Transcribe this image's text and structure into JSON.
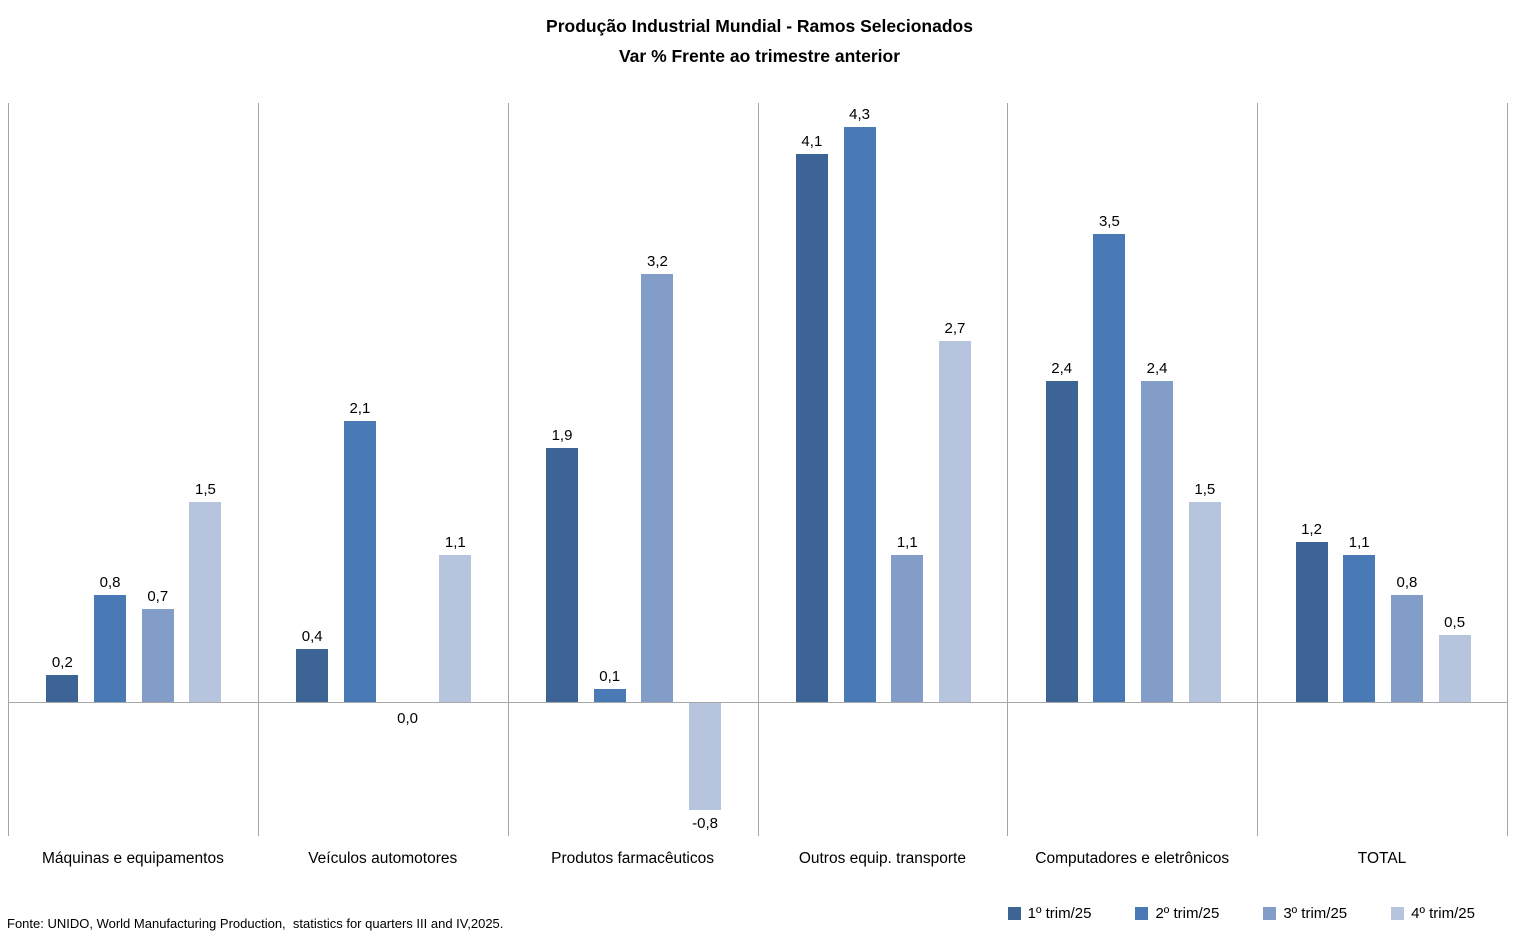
{
  "title": {
    "line1": "Produção Industrial Mundial - Ramos Selecionados",
    "line2": "Var % Frente ao trimestre anterior"
  },
  "source": "Fonte: UNIDO, World Manufacturing Production,  statistics for quarters III and IV,2025.",
  "chart_data": {
    "type": "bar",
    "title": "Produção Industrial Mundial - Ramos Selecionados",
    "subtitle": "Var % Frente ao trimestre anterior",
    "categories": [
      "Máquinas e equipamentos",
      "Veículos automotores",
      "Produtos farmacêuticos",
      "Outros equip. transporte",
      "Computadores e eletrônicos",
      "TOTAL"
    ],
    "series": [
      {
        "name": "1º trim/25",
        "color": "#3C6494",
        "values": [
          0.2,
          0.4,
          1.9,
          4.1,
          2.4,
          1.2
        ]
      },
      {
        "name": "2º trim/25",
        "color": "#4A7AB5",
        "values": [
          0.8,
          2.1,
          0.1,
          4.3,
          3.5,
          1.1
        ]
      },
      {
        "name": "3º trim/25",
        "color": "#829DC8",
        "values": [
          0.7,
          0.0,
          3.2,
          1.1,
          2.4,
          0.8
        ]
      },
      {
        "name": "4º trim/25",
        "color": "#B7C4DE",
        "values": [
          1.5,
          1.1,
          -0.8,
          2.7,
          1.5,
          0.5
        ]
      }
    ],
    "ylim": [
      -1.0,
      4.48
    ],
    "value_labels": "on",
    "value_label_decimal_separator": ",",
    "grid": "vertical-category-separators-only",
    "axis_color": "#A6A6A6",
    "legend_position": "bottom-right"
  }
}
